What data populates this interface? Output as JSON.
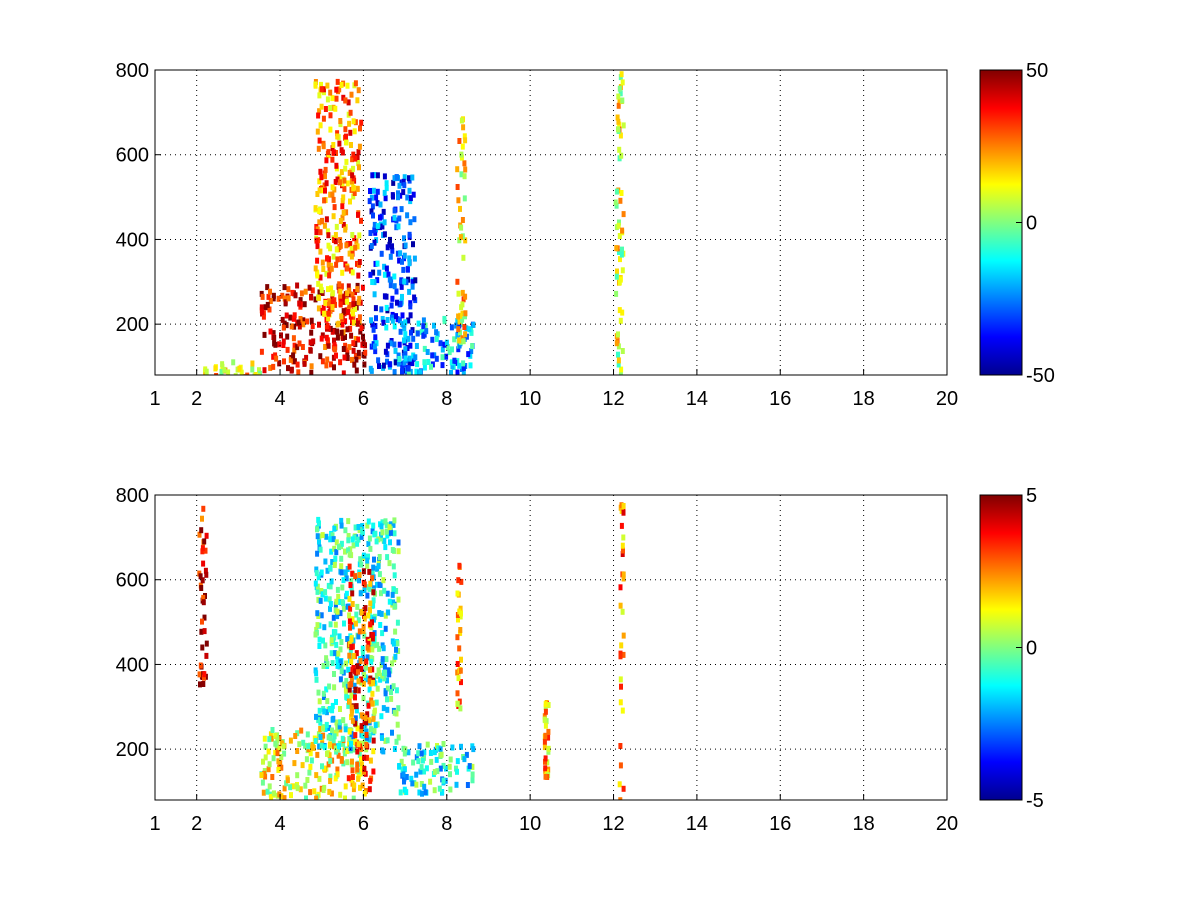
{
  "chart_data": [
    {
      "type": "heatmap",
      "title": "",
      "xlabel": "",
      "ylabel": "",
      "xlim": [
        1,
        20
      ],
      "ylim": [
        80,
        800
      ],
      "xticks": [
        1,
        2,
        4,
        6,
        8,
        10,
        12,
        14,
        16,
        18,
        20
      ],
      "yticks": [
        200,
        400,
        600,
        800
      ],
      "grid": true,
      "colormap": "jet",
      "clim": [
        -50,
        50
      ],
      "colorbar_ticks": [
        -50,
        0,
        50
      ],
      "colorbar_tick_labels": [
        "-50",
        "0",
        "50"
      ],
      "features": [
        {
          "x": [
            3.5,
            6.0
          ],
          "y": [
            90,
            300
          ],
          "value": 40
        },
        {
          "x": [
            4.8,
            5.9
          ],
          "y": [
            200,
            780
          ],
          "value": 25
        },
        {
          "x": [
            6.1,
            7.2
          ],
          "y": [
            90,
            560
          ],
          "value": -30
        },
        {
          "x": [
            6.8,
            8.6
          ],
          "y": [
            90,
            220
          ],
          "value": -20
        },
        {
          "x": [
            2.0,
            3.5
          ],
          "y": [
            80,
            120
          ],
          "value": 15
        },
        {
          "x": [
            8.2,
            8.4
          ],
          "y": [
            150,
            700
          ],
          "value": 15
        },
        {
          "x": [
            12.0,
            12.2
          ],
          "y": [
            80,
            800
          ],
          "value": 10
        }
      ]
    },
    {
      "type": "heatmap",
      "title": "",
      "xlabel": "",
      "ylabel": "",
      "xlim": [
        1,
        20
      ],
      "ylim": [
        80,
        800
      ],
      "xticks": [
        1,
        2,
        4,
        6,
        8,
        10,
        12,
        14,
        16,
        18,
        20
      ],
      "yticks": [
        200,
        400,
        600,
        800
      ],
      "grid": true,
      "colormap": "jet",
      "clim": [
        -5,
        5
      ],
      "colorbar_ticks": [
        -5,
        0,
        5
      ],
      "colorbar_tick_labels": [
        "-5",
        "0",
        "5"
      ],
      "features": [
        {
          "x": [
            3.5,
            6.0
          ],
          "y": [
            90,
            260
          ],
          "value": 1
        },
        {
          "x": [
            4.8,
            6.8
          ],
          "y": [
            200,
            750
          ],
          "value": -1
        },
        {
          "x": [
            5.6,
            6.2
          ],
          "y": [
            100,
            640
          ],
          "value": 3
        },
        {
          "x": [
            6.8,
            8.6
          ],
          "y": [
            100,
            220
          ],
          "value": -1
        },
        {
          "x": [
            2.0,
            2.2
          ],
          "y": [
            350,
            800
          ],
          "value": 4
        },
        {
          "x": [
            8.2,
            8.3
          ],
          "y": [
            300,
            650
          ],
          "value": 2
        },
        {
          "x": [
            10.3,
            10.4
          ],
          "y": [
            130,
            320
          ],
          "value": 2
        },
        {
          "x": [
            12.1,
            12.2
          ],
          "y": [
            80,
            790
          ],
          "value": 2.5
        }
      ]
    }
  ]
}
